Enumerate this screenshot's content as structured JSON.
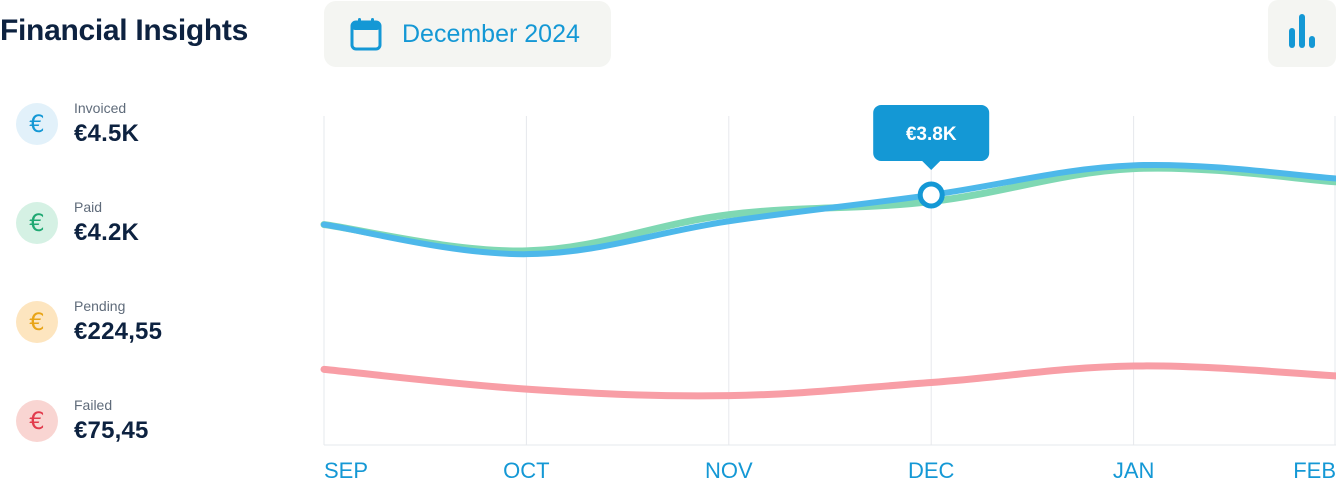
{
  "header": {
    "title": "Financial Insights",
    "date_label": "December 2024",
    "date_icon": "calendar-icon",
    "chart_button_icon": "bar-chart-icon"
  },
  "colors": {
    "accent": "#1498d5",
    "invoiced": "#4db8ea",
    "paid": "#7fd8b3",
    "failed": "#f89ea6",
    "pending": "#f4b73f",
    "grid": "#e6e8ec"
  },
  "legend": [
    {
      "label": "Invoiced",
      "value": "€4.5K",
      "symbol": "€",
      "color": "#1498d5",
      "bg": "#e2f1fa"
    },
    {
      "label": "Paid",
      "value": "€4.2K",
      "symbol": "€",
      "color": "#1fa872",
      "bg": "#d5f1e4"
    },
    {
      "label": "Pending",
      "value": "€224,55",
      "symbol": "€",
      "color": "#e8a417",
      "bg": "#fde5bf"
    },
    {
      "label": "Failed",
      "value": "€75,45",
      "symbol": "€",
      "color": "#e23b4c",
      "bg": "#f9d5d2"
    }
  ],
  "chart_data": {
    "type": "line",
    "categories": [
      "SEP",
      "OCT",
      "NOV",
      "DEC",
      "JAN",
      "FEB"
    ],
    "ylim": [
      0,
      5
    ],
    "grid": "vertical",
    "series": [
      {
        "key": "invoiced",
        "values": [
          3.35,
          2.9,
          3.4,
          3.8,
          4.25,
          4.05
        ]
      },
      {
        "key": "paid",
        "values": [
          3.35,
          2.95,
          3.5,
          3.7,
          4.2,
          4.0
        ]
      },
      {
        "key": "failed",
        "values": [
          1.15,
          0.85,
          0.75,
          0.95,
          1.2,
          1.05
        ]
      }
    ],
    "tooltip": {
      "category": "DEC",
      "series": "invoiced",
      "label": "€3.8K"
    }
  }
}
